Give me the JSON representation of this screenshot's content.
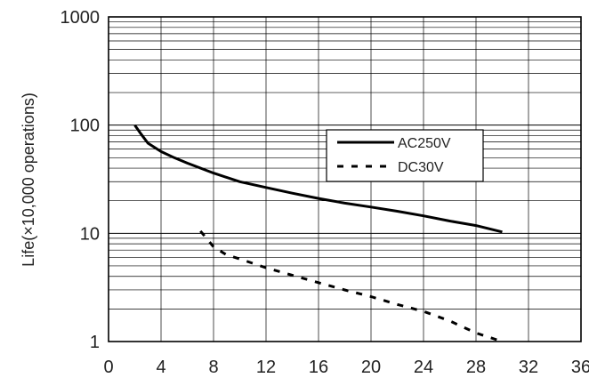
{
  "chart_data": {
    "type": "line",
    "ylabel": "Life(×10,000 operations)",
    "xlabel": "",
    "xlim": [
      0,
      36
    ],
    "ylim": [
      1,
      1000
    ],
    "yscale": "log",
    "grid": true,
    "legend_position": "upper-right",
    "x_ticks": [
      "0",
      "4",
      "8",
      "12",
      "16",
      "20",
      "24",
      "28",
      "32",
      "36"
    ],
    "y_ticks": [
      "1",
      "10",
      "100",
      "1000"
    ],
    "series": [
      {
        "name": "AC250V",
        "style": "solid",
        "x": [
          2,
          2.5,
          3,
          4,
          5,
          6,
          8,
          10,
          12,
          14,
          16,
          18,
          20,
          22,
          24,
          26,
          28,
          30
        ],
        "y": [
          100,
          82,
          68,
          57,
          50,
          44.5,
          36,
          30,
          26.5,
          23.5,
          21,
          19,
          17.5,
          16,
          14.5,
          13,
          11.8,
          10.3
        ]
      },
      {
        "name": "DC30V",
        "style": "dashed",
        "x": [
          7,
          8,
          9,
          10,
          12,
          14,
          16,
          18,
          20,
          22,
          24,
          26,
          28,
          30
        ],
        "y": [
          10.5,
          7.5,
          6.3,
          5.8,
          4.8,
          4.1,
          3.5,
          3.0,
          2.6,
          2.2,
          1.9,
          1.55,
          1.2,
          1.0
        ]
      }
    ],
    "colors": {
      "line": "#000000",
      "grid": "#000000"
    }
  }
}
